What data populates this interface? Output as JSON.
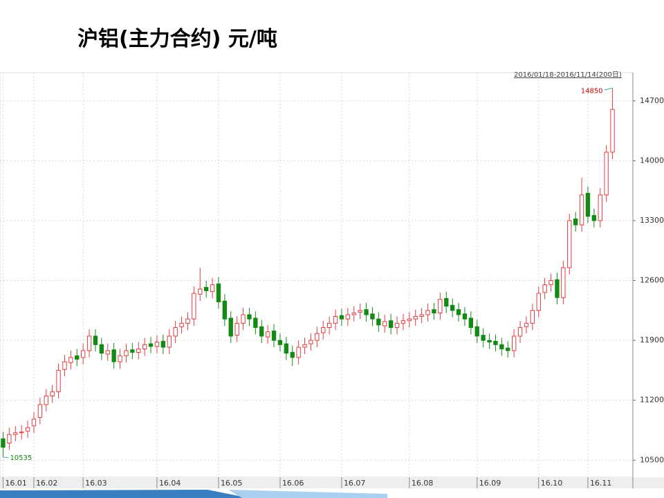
{
  "chart_data": {
    "type": "candlestick",
    "title": "沪铝(主力合约) 元/吨",
    "annotation": "2016/01/18-2016/11/14(200日)",
    "up_color": "#e23b3f",
    "down_color": "#138a13",
    "grid": true,
    "xlim": [
      -0.5,
      99.5
    ],
    "xticks": [
      {
        "value": 0,
        "label": "16.01"
      },
      {
        "value": 5,
        "label": "16.02"
      },
      {
        "value": 13,
        "label": "16.03"
      },
      {
        "value": 25,
        "label": "16.04"
      },
      {
        "value": 35,
        "label": "16.05"
      },
      {
        "value": 45,
        "label": "16.06"
      },
      {
        "value": 55,
        "label": "16.07"
      },
      {
        "value": 66,
        "label": "16.08"
      },
      {
        "value": 77,
        "label": "16.09"
      },
      {
        "value": 87,
        "label": "16.10"
      },
      {
        "value": 95,
        "label": "16.11"
      }
    ],
    "ylim": [
      10300,
      15030
    ],
    "yticks": [
      10500,
      11200,
      11900,
      12600,
      13300,
      14000,
      14700
    ],
    "open": [
      10750,
      10700,
      10800,
      10820,
      10840,
      10900,
      11000,
      11150,
      11250,
      11300,
      11560,
      11640,
      11720,
      11700,
      11780,
      11950,
      11850,
      11740,
      11790,
      11650,
      11720,
      11790,
      11760,
      11800,
      11860,
      11830,
      11890,
      11820,
      11950,
      12060,
      12100,
      12150,
      12440,
      12520,
      12470,
      12560,
      12360,
      12160,
      11960,
      12100,
      12200,
      12160,
      12060,
      11940,
      12010,
      11900,
      11860,
      11760,
      11700,
      11820,
      11860,
      11900,
      11990,
      12050,
      12100,
      12190,
      12150,
      12200,
      12230,
      12260,
      12210,
      12150,
      12070,
      12130,
      12050,
      12100,
      12130,
      12150,
      12180,
      12200,
      12260,
      12220,
      12390,
      12310,
      12260,
      12210,
      12160,
      12060,
      11960,
      11900,
      11890,
      11850,
      11810,
      11780,
      11950,
      12060,
      12100,
      12250,
      12460,
      12550,
      12610,
      12400,
      12750,
      13320,
      13250,
      13620,
      13360,
      13300,
      13600,
      14100
    ],
    "high": [
      10830,
      10880,
      10900,
      10910,
      10960,
      11060,
      11230,
      11330,
      11380,
      11630,
      11730,
      11780,
      11800,
      11860,
      12030,
      12030,
      11930,
      11860,
      11870,
      11800,
      11860,
      11870,
      11880,
      11930,
      11940,
      11960,
      11970,
      12030,
      12130,
      12180,
      12230,
      12530,
      12750,
      12600,
      12630,
      12640,
      12440,
      12240,
      12180,
      12280,
      12280,
      12240,
      12140,
      12080,
      12090,
      11980,
      11940,
      11840,
      11900,
      11930,
      11980,
      12060,
      12130,
      12180,
      12260,
      12270,
      12280,
      12300,
      12330,
      12340,
      12290,
      12230,
      12200,
      12210,
      12180,
      12210,
      12230,
      12260,
      12280,
      12330,
      12340,
      12460,
      12470,
      12390,
      12340,
      12290,
      12240,
      12140,
      12040,
      11980,
      11970,
      11930,
      11890,
      12030,
      12130,
      12180,
      12330,
      12530,
      12630,
      12680,
      12690,
      12830,
      13380,
      13400,
      13800,
      13700,
      13440,
      13680,
      14180,
      14850
    ],
    "low": [
      10535,
      10620,
      10720,
      10740,
      10760,
      10820,
      10920,
      11070,
      11170,
      11220,
      11480,
      11560,
      11600,
      11620,
      11700,
      11770,
      11670,
      11660,
      11570,
      11570,
      11640,
      11680,
      11680,
      11720,
      11750,
      11750,
      11740,
      11740,
      11870,
      11980,
      12020,
      12070,
      12360,
      12400,
      12390,
      12270,
      12070,
      11870,
      11880,
      12020,
      12070,
      11970,
      11870,
      11860,
      11820,
      11770,
      11670,
      11600,
      11620,
      11740,
      11780,
      11820,
      11910,
      11970,
      12020,
      12070,
      12070,
      12120,
      12150,
      12120,
      12070,
      12000,
      11990,
      11970,
      11970,
      12020,
      12050,
      12070,
      12100,
      12120,
      12140,
      12140,
      12220,
      12170,
      12120,
      12070,
      11970,
      11870,
      11820,
      11800,
      11770,
      11720,
      11700,
      11700,
      11870,
      11980,
      12020,
      12170,
      12380,
      12470,
      12320,
      12320,
      12670,
      13170,
      13170,
      13270,
      13220,
      13220,
      13520,
      14020
    ],
    "close": [
      10650,
      10800,
      10820,
      10830,
      10880,
      10980,
      11150,
      11250,
      11300,
      11550,
      11650,
      11700,
      11680,
      11780,
      11950,
      11850,
      11750,
      11780,
      11650,
      11720,
      11780,
      11760,
      11800,
      11850,
      11830,
      11880,
      11820,
      11950,
      12050,
      12100,
      12150,
      12450,
      12500,
      12480,
      12550,
      12350,
      12150,
      11950,
      12100,
      12200,
      12150,
      12050,
      11950,
      12000,
      11900,
      11850,
      11750,
      11700,
      11820,
      11850,
      11900,
      11980,
      12050,
      12100,
      12180,
      12150,
      12200,
      12220,
      12250,
      12200,
      12150,
      12080,
      12120,
      12050,
      12100,
      12130,
      12150,
      12180,
      12200,
      12250,
      12220,
      12380,
      12300,
      12250,
      12200,
      12150,
      12050,
      11950,
      11900,
      11880,
      11850,
      11800,
      11780,
      11950,
      12050,
      12100,
      12250,
      12450,
      12550,
      12600,
      12400,
      12750,
      13300,
      13250,
      13600,
      13350,
      13300,
      13600,
      14100,
      14600
    ]
  }
}
